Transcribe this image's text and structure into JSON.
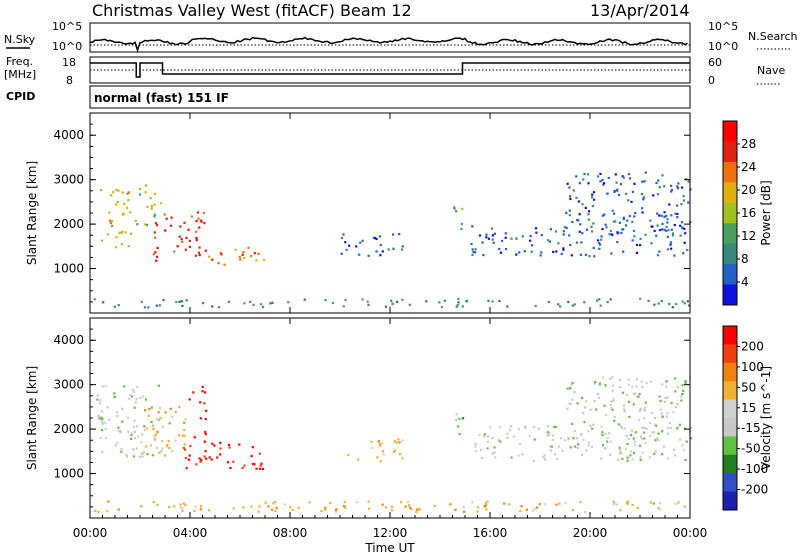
{
  "header": {
    "title": "Christmas Valley West (fitACF)",
    "beam": "Beam 12",
    "date": "13/Apr/2014"
  },
  "top_panels": {
    "nsky_label": "N.Sky",
    "nsearch_label": "N.Search",
    "nsky_ticks": [
      "10^5",
      "10^0"
    ],
    "freq_label_1": "Freq.",
    "freq_label_2": "[MHz]",
    "freq_ticks": [
      "18",
      "8"
    ],
    "nave_label": "Nave",
    "nave_ticks": [
      "60",
      "0"
    ],
    "cpid_label": "CPID",
    "cpid_text": "normal (fast) 151 IF"
  },
  "x_axis": {
    "label": "Time UT",
    "ticks": [
      "00:00",
      "04:00",
      "08:00",
      "12:00",
      "16:00",
      "20:00",
      "00:00"
    ]
  },
  "colors": {
    "power_scale": [
      "#1010e0",
      "#2060c8",
      "#3a8a7a",
      "#48a060",
      "#a0c020",
      "#e0b010",
      "#f07010",
      "#e02010",
      "#ff0000"
    ],
    "velocity_scale": [
      "#2020b0",
      "#3050c8",
      "#208020",
      "#60c040",
      "#c8c8c8",
      "#d0d0d0",
      "#f0b030",
      "#f08010",
      "#f04010",
      "#ff0000"
    ]
  },
  "chart_data": [
    {
      "type": "heatmap",
      "name": "power",
      "ylabel": "Slant Range [km]",
      "ylim": [
        0,
        4500
      ],
      "yticks": [
        "1000",
        "2000",
        "3000",
        "4000"
      ],
      "xlim_hours": [
        0,
        24
      ],
      "colorbar_label": "Power [dB]",
      "colorbar_ticks": [
        "4",
        "8",
        "12",
        "16",
        "20",
        "24",
        "28"
      ],
      "regions": [
        {
          "t": [
            0.4,
            1.6
          ],
          "r": [
            1500,
            2900
          ],
          "level": 5
        },
        {
          "t": [
            1.7,
            2.8
          ],
          "r": [
            1800,
            2900
          ],
          "level": 4
        },
        {
          "t": [
            2.5,
            4.6
          ],
          "r": [
            1200,
            2300
          ],
          "level": 7
        },
        {
          "t": [
            4.6,
            7.0
          ],
          "r": [
            1100,
            1500
          ],
          "level": 6
        },
        {
          "t": [
            10.0,
            12.5
          ],
          "r": [
            1300,
            1800
          ],
          "level": 1
        },
        {
          "t": [
            14.4,
            14.9
          ],
          "r": [
            1900,
            2600
          ],
          "level": 3
        },
        {
          "t": [
            15.2,
            24.0
          ],
          "r": [
            1300,
            2000
          ],
          "level": 1
        },
        {
          "t": [
            19.0,
            24.0
          ],
          "r": [
            1800,
            3200
          ],
          "level": 1
        },
        {
          "t": [
            0.0,
            24.0
          ],
          "r": [
            150,
            350
          ],
          "level": 2
        }
      ]
    },
    {
      "type": "heatmap",
      "name": "velocity",
      "ylabel": "Slant Range [km]",
      "ylim": [
        0,
        4500
      ],
      "yticks": [
        "1000",
        "2000",
        "3000",
        "4000"
      ],
      "xlim_hours": [
        0,
        24
      ],
      "colorbar_label": "Velocity [m s^-1]",
      "colorbar_ticks": [
        "200",
        "100",
        "50",
        "15",
        "-15",
        "-50",
        "-100",
        "-200"
      ],
      "regions": [
        {
          "t": [
            0.2,
            2.9
          ],
          "r": [
            1400,
            3000
          ],
          "level": 4
        },
        {
          "t": [
            2.0,
            3.8
          ],
          "r": [
            1400,
            2600
          ],
          "level": 6
        },
        {
          "t": [
            3.6,
            7.0
          ],
          "r": [
            1100,
            1800
          ],
          "level": 9
        },
        {
          "t": [
            3.9,
            4.6
          ],
          "r": [
            1800,
            3000
          ],
          "level": 9
        },
        {
          "t": [
            10.2,
            12.5
          ],
          "r": [
            1300,
            1800
          ],
          "level": 6
        },
        {
          "t": [
            14.4,
            14.9
          ],
          "r": [
            1900,
            2600
          ],
          "level": 3
        },
        {
          "t": [
            15.2,
            24.0
          ],
          "r": [
            1300,
            2100
          ],
          "level": 4
        },
        {
          "t": [
            19.0,
            24.0
          ],
          "r": [
            1800,
            3200
          ],
          "level": 4
        },
        {
          "t": [
            0.0,
            24.0
          ],
          "r": [
            150,
            400
          ],
          "level": 6
        }
      ]
    }
  ]
}
